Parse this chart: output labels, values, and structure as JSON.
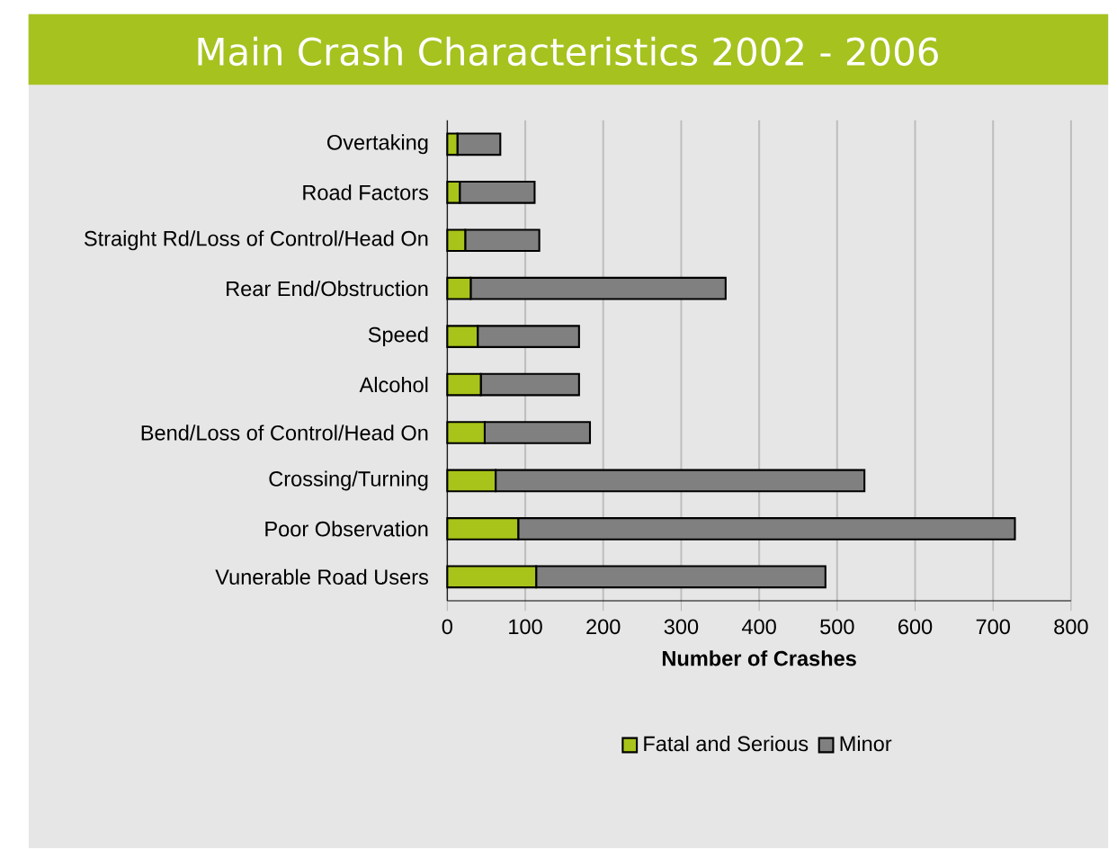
{
  "chart_data": {
    "type": "bar",
    "orientation": "horizontal",
    "stacked": true,
    "title": "Main Crash Characteristics 2002 - 2006",
    "xlabel": "Number of Crashes",
    "categories": [
      "Overtaking",
      "Road Factors",
      "Straight Rd/Loss of Control/Head On",
      "Rear End/Obstruction",
      "Speed",
      "Alcohol",
      "Bend/Loss of Control/Head On",
      "Crossing/Turning",
      "Poor Observation",
      "Vunerable Road Users"
    ],
    "series": [
      {
        "name": "Fatal and Serious",
        "color": "#a8c41a",
        "values": [
          13,
          16,
          23,
          30,
          39,
          43,
          48,
          62,
          91,
          114
        ]
      },
      {
        "name": "Minor",
        "color": "#808080",
        "values": [
          55,
          96,
          95,
          327,
          130,
          126,
          135,
          473,
          637,
          371
        ]
      }
    ],
    "xlim": [
      0,
      800
    ],
    "xticks": [
      0,
      100,
      200,
      300,
      400,
      500,
      600,
      700,
      800
    ],
    "grid": "x",
    "legend": "bottom"
  }
}
